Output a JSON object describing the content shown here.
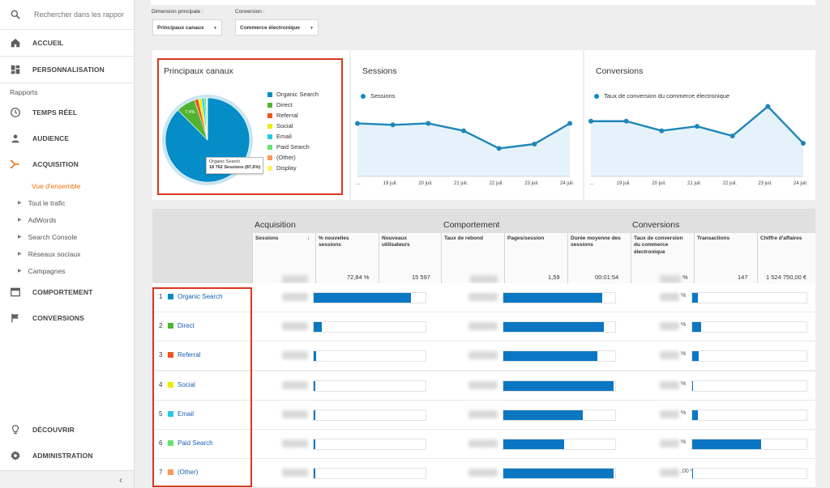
{
  "sidebar": {
    "search_placeholder": "Rechercher dans les rappor",
    "items_top": [
      {
        "label": "ACCUEIL",
        "icon": "home-icon"
      },
      {
        "label": "PERSONNALISATION",
        "icon": "dashboard-icon"
      }
    ],
    "section_label": "Rapports",
    "items_reports": [
      {
        "label": "TEMPS RÉEL",
        "icon": "clock-icon"
      },
      {
        "label": "AUDIENCE",
        "icon": "person-icon"
      },
      {
        "label": "ACQUISITION",
        "icon": "acquisition-icon"
      }
    ],
    "acquisition_children": [
      "Vue d'ensemble",
      "Tout le trafic",
      "AdWords",
      "Search Console",
      "Réseaux sociaux",
      "Campagnes"
    ],
    "items_bottom": [
      {
        "label": "COMPORTEMENT",
        "icon": "behavior-icon"
      },
      {
        "label": "CONVERSIONS",
        "icon": "flag-icon"
      }
    ],
    "footer_items": [
      {
        "label": "DÉCOUVRIR",
        "icon": "lightbulb-icon"
      },
      {
        "label": "ADMINISTRATION",
        "icon": "gear-icon"
      }
    ],
    "collapse_glyph": "‹"
  },
  "filters": {
    "primary_label": "Dimension principale :",
    "primary_value": "Principaux canaux",
    "conversion_label": "Conversion :",
    "conversion_value": "Commerce électronique"
  },
  "pie_panel": {
    "title": "Principaux canaux",
    "legend": [
      {
        "label": "Organic Search",
        "color": "#058dc7"
      },
      {
        "label": "Direct",
        "color": "#50b432"
      },
      {
        "label": "Referral",
        "color": "#ed561b"
      },
      {
        "label": "Social",
        "color": "#edef00"
      },
      {
        "label": "Email",
        "color": "#24cbe5"
      },
      {
        "label": "Paid Search",
        "color": "#64e572"
      },
      {
        "label": "(Other)",
        "color": "#ff9655"
      },
      {
        "label": "Display",
        "color": "#fff263"
      }
    ],
    "slice_label": "7.4%",
    "tooltip_title": "Organic Search",
    "tooltip_value": "18 762 Sessions (87,6%)"
  },
  "sessions_panel": {
    "title": "Sessions",
    "legend": "Sessions"
  },
  "conversions_panel": {
    "title": "Conversions",
    "legend": "Taux de conversion du commerce électronique"
  },
  "chart_data": [
    {
      "type": "pie",
      "title": "Principaux canaux",
      "categories": [
        "Organic Search",
        "Direct",
        "Referral",
        "Social",
        "Email",
        "Paid Search",
        "(Other)",
        "Display"
      ],
      "values": [
        87.6,
        7.4,
        1.5,
        1.2,
        1.0,
        0.8,
        0.3,
        0.2
      ]
    },
    {
      "type": "line",
      "title": "Sessions",
      "categories": [
        "…",
        "19 juil.",
        "20 juil.",
        "21 juil.",
        "22 juil.",
        "23 juil.",
        "24 juil."
      ],
      "series": [
        {
          "name": "Sessions",
          "values": [
            0.72,
            0.7,
            0.72,
            0.62,
            0.38,
            0.44,
            0.72
          ]
        }
      ]
    },
    {
      "type": "line",
      "title": "Conversions",
      "categories": [
        "…",
        "19 juil.",
        "20 juil.",
        "21 juil.",
        "22 juil.",
        "23 juil.",
        "24 juil."
      ],
      "series": [
        {
          "name": "Taux de conversion du commerce électronique",
          "values": [
            0.75,
            0.75,
            0.62,
            0.68,
            0.55,
            0.95,
            0.45
          ]
        }
      ]
    }
  ],
  "table": {
    "groups": [
      "Acquisition",
      "Comportement",
      "Conversions"
    ],
    "columns": [
      "Sessions",
      "% nouvelles sessions",
      "Nouveaux utilisateurs",
      "Taux de rebond",
      "Pages/session",
      "Durée moyenne des sessions",
      "Taux de conversion du commerce électronique",
      "Transactions",
      "Chiffre d'affaires"
    ],
    "sort_glyph": "↓",
    "totals": {
      "new_sessions_pct": "72,84 %",
      "new_users": "15 597",
      "pages_session": "1,59",
      "avg_duration": "00:01:54",
      "conv_rate": "%",
      "transactions": "147",
      "revenue": "1 524 750,00 €"
    },
    "rows": [
      {
        "rank": "1",
        "label": "Organic Search",
        "color": "#058dc7",
        "new_sessions": 0.88,
        "pages": 0.9,
        "transactions": 0.05,
        "conv_suffix": "%"
      },
      {
        "rank": "2",
        "label": "Direct",
        "color": "#50b432",
        "new_sessions": 0.07,
        "pages": 0.91,
        "transactions": 0.08,
        "conv_suffix": "%"
      },
      {
        "rank": "3",
        "label": "Referral",
        "color": "#ed561b",
        "new_sessions": 0.02,
        "pages": 0.85,
        "transactions": 0.06,
        "conv_suffix": "%"
      },
      {
        "rank": "4",
        "label": "Social",
        "color": "#edef00",
        "new_sessions": 0.01,
        "pages": 1.0,
        "transactions": 0.0,
        "conv_suffix": "%"
      },
      {
        "rank": "5",
        "label": "Email",
        "color": "#24cbe5",
        "new_sessions": 0.01,
        "pages": 0.72,
        "transactions": 0.05,
        "conv_suffix": "%"
      },
      {
        "rank": "6",
        "label": "Paid Search",
        "color": "#64e572",
        "new_sessions": 0.01,
        "pages": 0.55,
        "transactions": 0.61,
        "conv_suffix": "%"
      },
      {
        "rank": "7",
        "label": "(Other)",
        "color": "#ff9655",
        "new_sessions": 0.01,
        "pages": 1.0,
        "transactions": 0.0,
        "conv_suffix": ",00 %"
      }
    ]
  }
}
